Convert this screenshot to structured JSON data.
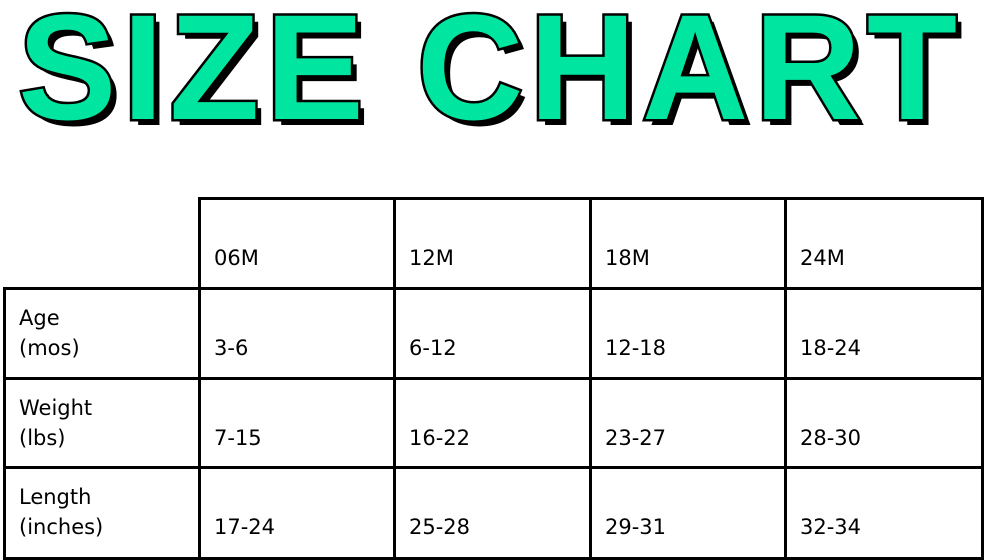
{
  "title": "SIZE CHART",
  "title_color": "#00e6a0",
  "table": {
    "columns": [
      "06M",
      "12M",
      "18M",
      "24M"
    ],
    "rows": [
      {
        "label1": "Age",
        "label2": "(mos)",
        "values": [
          "3-6",
          "6-12",
          "12-18",
          "18-24"
        ]
      },
      {
        "label1": "Weight",
        "label2": "(lbs)",
        "values": [
          "7-15",
          "16-22",
          "23-27",
          "28-30"
        ]
      },
      {
        "label1": "Length",
        "label2": "(inches)",
        "values": [
          "17-24",
          "25-28",
          "29-31",
          "32-34"
        ]
      }
    ]
  }
}
